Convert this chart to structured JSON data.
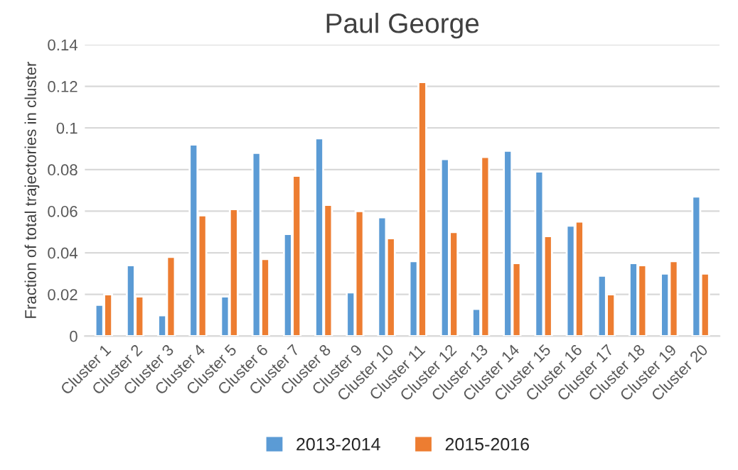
{
  "chart_data": {
    "type": "bar",
    "title": "Paul George",
    "ylabel": "Fraction of total trajectories in cluster",
    "categories": [
      "Cluster 1",
      "Cluster 2",
      "Cluster 3",
      "Cluster 4",
      "Cluster 5",
      "Cluster 6",
      "Cluster 7",
      "Cluster 8",
      "Cluster 9",
      "Cluster 10",
      "Cluster 11",
      "Cluster 12",
      "Cluster 13",
      "Cluster 14",
      "Cluster 15",
      "Cluster 16",
      "Cluster 17",
      "Cluster 18",
      "Cluster 19",
      "Cluster 20"
    ],
    "series": [
      {
        "name": "2013-2014",
        "color": "#5b9bd5",
        "values": [
          0.015,
          0.034,
          0.01,
          0.092,
          0.019,
          0.088,
          0.049,
          0.095,
          0.021,
          0.057,
          0.036,
          0.085,
          0.013,
          0.089,
          0.079,
          0.053,
          0.029,
          0.035,
          0.03,
          0.067
        ]
      },
      {
        "name": "2015-2016",
        "color": "#ed7d31",
        "values": [
          0.02,
          0.019,
          0.038,
          0.058,
          0.061,
          0.037,
          0.077,
          0.063,
          0.06,
          0.047,
          0.122,
          0.05,
          0.086,
          0.035,
          0.048,
          0.055,
          0.02,
          0.034,
          0.036,
          0.03
        ]
      }
    ],
    "ylim": [
      0,
      0.14
    ],
    "yticks": [
      0,
      0.02,
      0.04,
      0.06,
      0.08,
      {
        "value": 0.1,
        "label": "0.1"
      },
      0.12,
      0.14
    ],
    "grid": "y",
    "legend": "bottom"
  }
}
